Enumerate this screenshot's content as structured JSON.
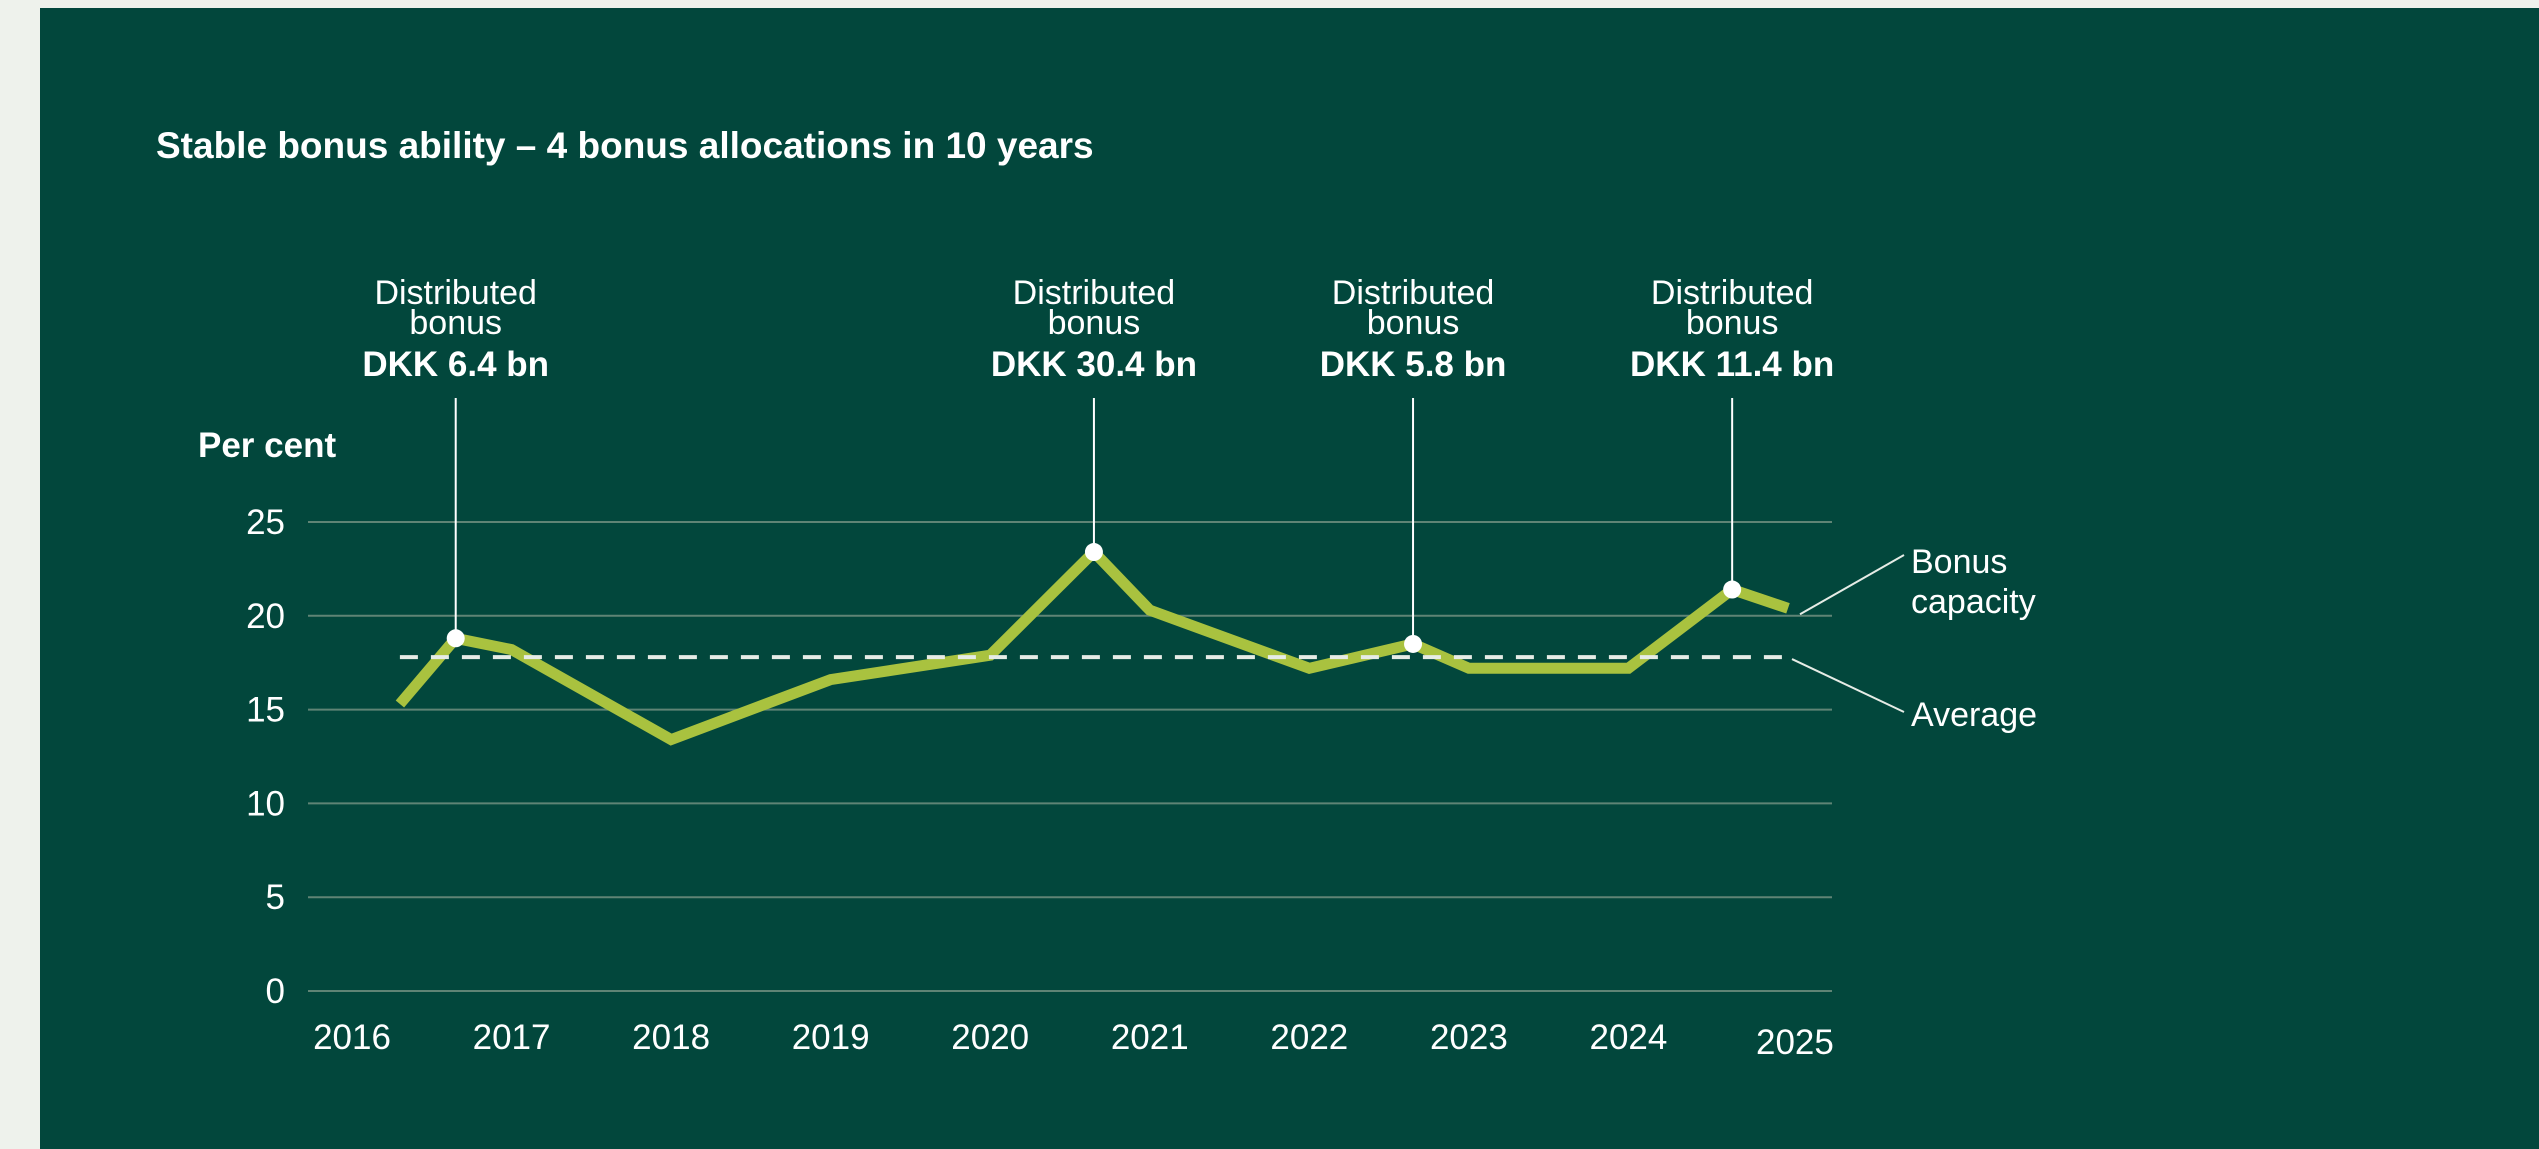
{
  "colors": {
    "background": "#02473c",
    "page": "#eef2ec",
    "line": "#a9c23f",
    "average": "#e6ece6",
    "grid": "#5f8475",
    "marker": "#ffffff",
    "text": "#ffffff"
  },
  "chart_data": {
    "type": "line",
    "title": "Stable bonus ability – 4 bonus allocations in 10 years",
    "ylabel": "Per cent",
    "xlabel": "",
    "ylim": [
      0,
      25
    ],
    "y_ticks": [
      0,
      5,
      10,
      15,
      20,
      25
    ],
    "x_ticks": [
      "2016",
      "2017",
      "2018",
      "2019",
      "2020",
      "2021",
      "2022",
      "2023",
      "2024",
      "2025"
    ],
    "grid": "horizontal",
    "series": [
      {
        "name": "Bonus capacity",
        "style": "solid",
        "points": [
          {
            "x": 2016.3,
            "y": 15.3
          },
          {
            "x": 2016.65,
            "y": 18.8
          },
          {
            "x": 2017.0,
            "y": 18.2
          },
          {
            "x": 2018.0,
            "y": 13.4
          },
          {
            "x": 2019.0,
            "y": 16.6
          },
          {
            "x": 2020.0,
            "y": 17.9
          },
          {
            "x": 2020.65,
            "y": 23.4
          },
          {
            "x": 2021.0,
            "y": 20.3
          },
          {
            "x": 2022.0,
            "y": 17.2
          },
          {
            "x": 2022.65,
            "y": 18.5
          },
          {
            "x": 2023.0,
            "y": 17.2
          },
          {
            "x": 2024.0,
            "y": 17.2
          },
          {
            "x": 2024.65,
            "y": 21.4
          },
          {
            "x": 2025.0,
            "y": 20.4
          }
        ]
      },
      {
        "name": "Average",
        "style": "dashed",
        "points": [
          {
            "x": 2016.3,
            "y": 17.8
          },
          {
            "x": 2025.0,
            "y": 17.8
          }
        ]
      }
    ],
    "annotations": [
      {
        "x": 2016.65,
        "y": 18.8,
        "line1": "Distributed",
        "line2": "bonus",
        "value": "DKK 6.4 bn"
      },
      {
        "x": 2020.65,
        "y": 23.4,
        "line1": "Distributed",
        "line2": "bonus",
        "value": "DKK 30.4 bn"
      },
      {
        "x": 2022.65,
        "y": 18.5,
        "line1": "Distributed",
        "line2": "bonus",
        "value": "DKK 5.8 bn"
      },
      {
        "x": 2024.65,
        "y": 21.4,
        "line1": "Distributed",
        "line2": "bonus",
        "value": "DKK 11.4 bn"
      }
    ],
    "legend_labels": {
      "bonus_line1": "Bonus",
      "bonus_line2": "capacity",
      "average": "Average"
    },
    "legend_position": "right"
  }
}
